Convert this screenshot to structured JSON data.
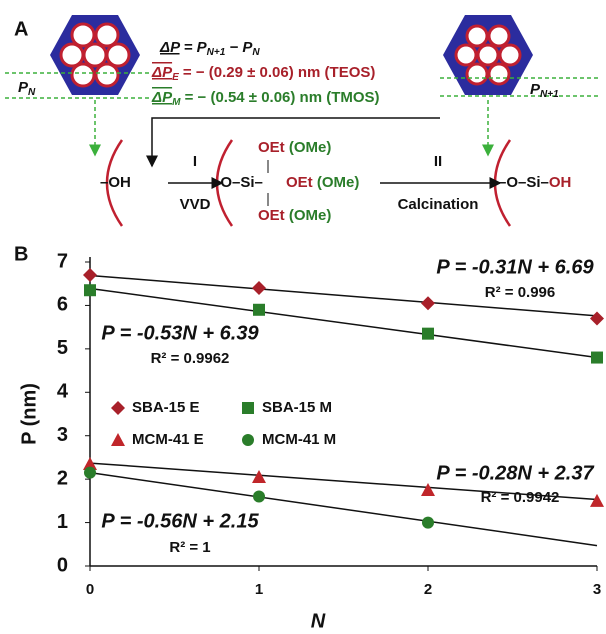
{
  "diagram": {
    "panel_label": "A",
    "delta_p": [
      "ΔP",
      " = P",
      "N+1",
      " − P",
      "N"
    ],
    "delta_pe": [
      "ΔP",
      "E",
      " = − (0.29 ± 0.06) nm (TEOS)"
    ],
    "delta_pm": [
      "ΔP",
      "M",
      " = − (0.54 ± 0.06) nm (TMOS)"
    ],
    "pn": [
      "P",
      "N"
    ],
    "pn1": [
      "P",
      "N+1"
    ],
    "oh": "OH",
    "step1": "I",
    "vvd": "VVD",
    "o_si": "O",
    "si": "Si",
    "oet_top": [
      "OEt",
      "(OMe)"
    ],
    "oet_mid": [
      "OEt",
      "(OMe)"
    ],
    "oet_bot": [
      "OEt",
      "(OMe)"
    ],
    "step2": "II",
    "calcination": "Calcination",
    "product": [
      "O",
      "Si",
      "OH"
    ]
  },
  "chart_data": {
    "type": "scatter",
    "panel_label": "B",
    "x_label": "N",
    "y_label": "P (nm)",
    "x": [
      0,
      1,
      2,
      3
    ],
    "xlim": [
      0,
      3
    ],
    "xticks": [
      0,
      1,
      2,
      3
    ],
    "ylim": [
      0,
      7
    ],
    "yticks": [
      0,
      1,
      2,
      3,
      4,
      5,
      6,
      7
    ],
    "series": [
      {
        "name": "SBA-15 E",
        "color": "#a8202a",
        "marker": "diamond",
        "values": [
          6.7,
          6.4,
          6.05,
          5.7
        ],
        "fit": {
          "slope": -0.31,
          "intercept": 6.69,
          "equation": "P = -0.31N + 6.69",
          "r2": "R² = 0.996"
        }
      },
      {
        "name": "SBA-15 M",
        "color": "#2a7d2a",
        "marker": "square",
        "values": [
          6.35,
          5.9,
          5.35,
          4.8
        ],
        "fit": {
          "slope": -0.53,
          "intercept": 6.39,
          "equation": "P = -0.53N + 6.39",
          "r2": "R² = 0.9962"
        }
      },
      {
        "name": "MCM-41 E",
        "color": "#c0262a",
        "marker": "triangle",
        "values": [
          2.35,
          2.05,
          1.75,
          1.5
        ],
        "fit": {
          "slope": -0.28,
          "intercept": 2.37,
          "equation": "P = -0.28N + 2.37",
          "r2": "R² = 0.9942"
        }
      },
      {
        "name": "MCM-41 M",
        "color": "#2a7d2a",
        "marker": "circle",
        "values": [
          2.15,
          1.6,
          1.0,
          null
        ],
        "fit": {
          "slope": -0.56,
          "intercept": 2.15,
          "equation": "P = -0.56N + 2.15",
          "r2": "R² = 1"
        }
      }
    ]
  }
}
